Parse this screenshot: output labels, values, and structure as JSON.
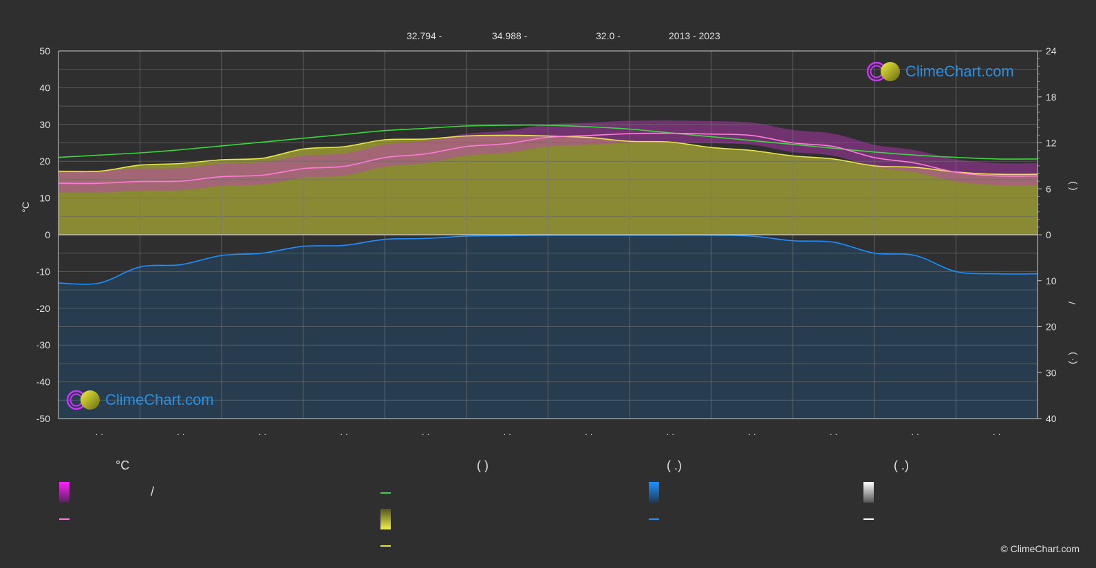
{
  "header": {
    "latitude": "32.794 -",
    "longitude": "34.988 -",
    "elevation": "32.0 -",
    "years": "2013 - 2023"
  },
  "logo": {
    "text": "ClimeChart.com"
  },
  "copyright": "© ClimeChart.com",
  "legend": {
    "col1_title": "°C",
    "col1_slash": "/",
    "col2_title": "(          )",
    "col3_title": "(   .)",
    "col4_title": "(   .)"
  },
  "colors": {
    "background": "#2f2f2f",
    "daylight": "#39d939",
    "sunshine": "#e6e64d",
    "temp_mean": "#ff7ad9",
    "temp_range": "#d426d4",
    "precip": "#1e90ff",
    "snow": "#ffffff"
  },
  "chart_data": {
    "type": "line",
    "x": [
      0,
      1,
      2,
      3,
      4,
      5,
      6,
      7,
      8,
      9,
      10,
      11,
      12,
      13,
      14,
      15,
      16,
      17,
      18,
      19,
      20,
      21,
      22,
      23,
      24
    ],
    "xtick_labels": [
      ". .",
      ". .",
      ". .",
      ". .",
      ". .",
      ". .",
      ". .",
      ". .",
      ". .",
      ". .",
      ". .",
      ". ."
    ],
    "left_axis": {
      "label": "°C",
      "ylim": [
        -50,
        50
      ],
      "ticks": [
        50,
        40,
        30,
        20,
        10,
        0,
        -10,
        -20,
        -30,
        -40,
        -50
      ]
    },
    "right_axis_top": {
      "ylim": [
        0,
        24
      ],
      "ticks": [
        24,
        18,
        12,
        6,
        0
      ]
    },
    "right_axis_bottom": {
      "ylim": [
        0,
        40
      ],
      "ticks": [
        0,
        10,
        20,
        30,
        40
      ]
    },
    "right_axis_labels": [
      "(        )",
      "/",
      "(·   )"
    ],
    "series": [
      {
        "id": "daylight",
        "axis": "right_top",
        "values": [
          10.1,
          10.4,
          10.7,
          11.1,
          11.6,
          12.1,
          12.6,
          13.1,
          13.6,
          13.9,
          14.2,
          14.3,
          14.3,
          14.1,
          13.8,
          13.3,
          12.8,
          12.3,
          11.8,
          11.3,
          10.8,
          10.4,
          10.1,
          9.9,
          9.9
        ]
      },
      {
        "id": "sunshine",
        "axis": "right_top",
        "values": [
          8.3,
          8.3,
          9.1,
          9.3,
          9.8,
          10.0,
          11.2,
          11.5,
          12.4,
          12.5,
          12.9,
          13.0,
          12.9,
          12.7,
          12.2,
          12.1,
          11.4,
          11.0,
          10.3,
          9.9,
          9.0,
          8.8,
          8.2,
          7.9,
          7.9
        ]
      },
      {
        "id": "temp_mean",
        "axis": "left",
        "values": [
          14.0,
          14.0,
          14.5,
          14.6,
          15.8,
          16.2,
          18.0,
          18.6,
          21.0,
          22.0,
          24.0,
          24.8,
          26.5,
          27.0,
          27.5,
          27.6,
          27.4,
          27.0,
          25.0,
          24.0,
          21.0,
          19.5,
          17.0,
          16.0,
          16.0
        ]
      },
      {
        "id": "precip",
        "axis": "right_bottom",
        "values": [
          10.5,
          10.5,
          7.0,
          6.5,
          4.5,
          4.0,
          2.5,
          2.3,
          1.0,
          0.8,
          0.3,
          0.2,
          0.1,
          0.1,
          0.1,
          0.1,
          0.1,
          0.3,
          1.3,
          1.6,
          4.0,
          4.5,
          8.0,
          8.5,
          8.5
        ]
      }
    ]
  }
}
